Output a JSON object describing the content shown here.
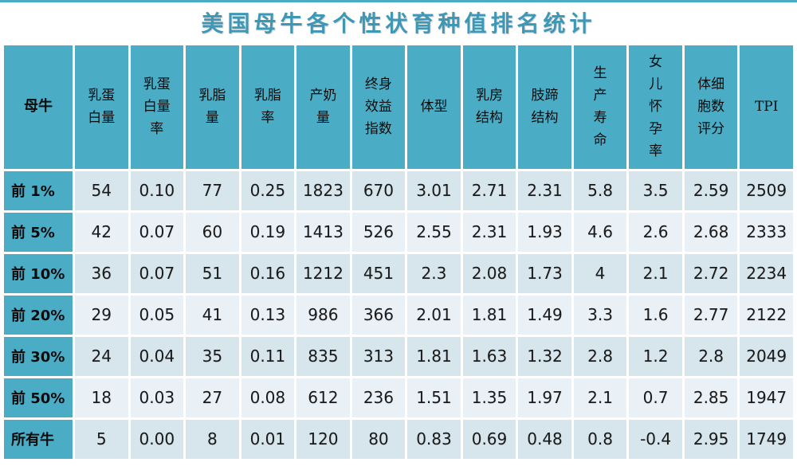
{
  "title": "美国母牛各个性状育种值排名统计",
  "table": {
    "corner_header": "母牛",
    "columns": [
      "乳蛋\n白量",
      "乳蛋\n白量\n率",
      "乳脂\n量",
      "乳脂\n率",
      "产奶\n量",
      "终身\n效益\n指数",
      "体型",
      "乳房\n结构",
      "肢蹄\n结构",
      "生\n产\n寿\n命",
      "女\n儿\n怀\n孕\n率",
      "体细\n胞数\n评分",
      "TPI"
    ],
    "rows": [
      {
        "label": "前 1%",
        "values": [
          "54",
          "0.10",
          "77",
          "0.25",
          "1823",
          "670",
          "3.01",
          "2.71",
          "2.31",
          "5.8",
          "3.5",
          "2.59",
          "2509"
        ]
      },
      {
        "label": "前 5%",
        "values": [
          "42",
          "0.07",
          "60",
          "0.19",
          "1413",
          "526",
          "2.55",
          "2.31",
          "1.93",
          "4.6",
          "2.6",
          "2.68",
          "2333"
        ]
      },
      {
        "label": "前 10%",
        "values": [
          "36",
          "0.07",
          "51",
          "0.16",
          "1212",
          "451",
          "2.3",
          "2.08",
          "1.73",
          "4",
          "2.1",
          "2.72",
          "2234"
        ]
      },
      {
        "label": "前 20%",
        "values": [
          "29",
          "0.05",
          "41",
          "0.13",
          "986",
          "366",
          "2.01",
          "1.81",
          "1.49",
          "3.3",
          "1.6",
          "2.77",
          "2122"
        ]
      },
      {
        "label": "前 30%",
        "values": [
          "24",
          "0.04",
          "35",
          "0.11",
          "835",
          "313",
          "1.81",
          "1.63",
          "1.32",
          "2.8",
          "1.2",
          "2.8",
          "2049"
        ]
      },
      {
        "label": "前 50%",
        "values": [
          "18",
          "0.03",
          "27",
          "0.08",
          "612",
          "236",
          "1.51",
          "1.35",
          "1.97",
          "2.1",
          "0.7",
          "2.85",
          "1947"
        ]
      },
      {
        "label": "所有牛",
        "values": [
          "5",
          "0.00",
          "8",
          "0.01",
          "120",
          "80",
          "0.83",
          "0.69",
          "0.48",
          "0.8",
          "-0.4",
          "2.95",
          "1749"
        ]
      }
    ]
  },
  "colors": {
    "teal_header": "#4BACC6",
    "title_text": "#3E98B5",
    "row_odd_bg": "#D7E6ED",
    "row_even_bg": "#EAF1F6",
    "cell_text": "#1A1A1A",
    "gap_white": "#FFFFFF"
  },
  "chart_data": {
    "type": "table",
    "title": "美国母牛各个性状育种值排名统计",
    "columns": [
      "母牛",
      "乳蛋白量",
      "乳蛋白量率",
      "乳脂量",
      "乳脂率",
      "产奶量",
      "终身效益指数",
      "体型",
      "乳房结构",
      "肢蹄结构",
      "生产寿命",
      "女儿怀孕率",
      "体细胞数评分",
      "TPI"
    ],
    "rows": [
      [
        "前 1%",
        54,
        0.1,
        77,
        0.25,
        1823,
        670,
        3.01,
        2.71,
        2.31,
        5.8,
        3.5,
        2.59,
        2509
      ],
      [
        "前 5%",
        42,
        0.07,
        60,
        0.19,
        1413,
        526,
        2.55,
        2.31,
        1.93,
        4.6,
        2.6,
        2.68,
        2333
      ],
      [
        "前 10%",
        36,
        0.07,
        51,
        0.16,
        1212,
        451,
        2.3,
        2.08,
        1.73,
        4,
        2.1,
        2.72,
        2234
      ],
      [
        "前 20%",
        29,
        0.05,
        41,
        0.13,
        986,
        366,
        2.01,
        1.81,
        1.49,
        3.3,
        1.6,
        2.77,
        2122
      ],
      [
        "前 30%",
        24,
        0.04,
        35,
        0.11,
        835,
        313,
        1.81,
        1.63,
        1.32,
        2.8,
        1.2,
        2.8,
        2049
      ],
      [
        "前 50%",
        18,
        0.03,
        27,
        0.08,
        612,
        236,
        1.51,
        1.35,
        1.97,
        2.1,
        0.7,
        2.85,
        1947
      ],
      [
        "所有牛",
        5,
        0.0,
        8,
        0.01,
        120,
        80,
        0.83,
        0.69,
        0.48,
        0.8,
        -0.4,
        2.95,
        1749
      ]
    ]
  }
}
